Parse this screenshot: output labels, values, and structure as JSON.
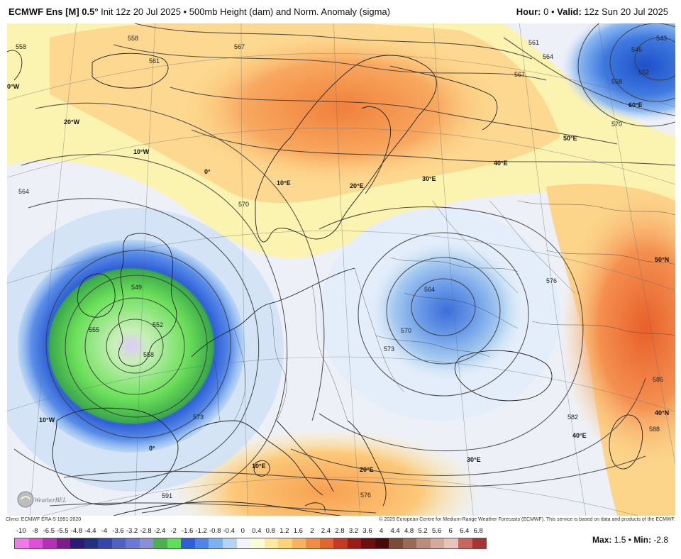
{
  "header": {
    "model": "ECMWF Ens [M] 0.5°",
    "init": "Init 12z 20 Jul 2025",
    "separator": "•",
    "product": "500mb Height (dam) and Norm. Anomaly (sigma)",
    "hour_label": "Hour:",
    "hour_value": "0",
    "valid_label": "Valid:",
    "valid_value": "12z Sun 20 Jul 2025"
  },
  "credits": {
    "climo": "Climo: ECMWF ERA-5 1991-2020",
    "copyright": "© 2025 European Centre for Medium-Range Weather Forecasts (ECMWF). This service is based on data and products of the ECMWF."
  },
  "legend": {
    "labels": [
      "-10",
      "-8",
      "-6.5",
      "-5.5",
      "-4.8",
      "-4.4",
      "-4",
      "-3.6",
      "-3.2",
      "-2.8",
      "-2.4",
      "-2",
      "-1.6",
      "-1.2",
      "-0.8",
      "-0.4",
      "0",
      "0.4",
      "0.8",
      "1.2",
      "1.6",
      "2",
      "2.4",
      "2.8",
      "3.2",
      "3.6",
      "4",
      "4.4",
      "4.8",
      "5.2",
      "5.6",
      "6",
      "6.4",
      "6.8"
    ],
    "colors": [
      "#f07ae8",
      "#e04fd8",
      "#b52fb8",
      "#7a1f8a",
      "#2a1a78",
      "#21307f",
      "#3446a8",
      "#5060c4",
      "#6a7ad4",
      "#8c8ed8",
      "#4caf50",
      "#5ee05a",
      "#2f5fd8",
      "#4f85ea",
      "#7fb0f0",
      "#b5d3f4",
      "#f2f4fa",
      "#fbfbd8",
      "#ffe9a0",
      "#fdd37a",
      "#f7b45e",
      "#f08c45",
      "#e26530",
      "#c43a22",
      "#9b1d18",
      "#6e0e10",
      "#4a0a0c",
      "#7d4a3a",
      "#9a6a58",
      "#b98c7c",
      "#d4a99e",
      "#e8c3bc",
      "#c7665e",
      "#a73333"
    ]
  },
  "stats": {
    "max_label": "Max:",
    "max_value": "1.5",
    "min_label": "Min:",
    "min_value": "-2.8"
  },
  "logo_text": "WeatherBELL",
  "map_labels": {
    "lon_20w": "20°W",
    "lon_10w_top": "10°W",
    "lon_0w_left": "0°W",
    "lon_0_mid": "0°",
    "lon_10e_mid": "10°E",
    "lon_20e_mid": "20°E",
    "lon_30e_mid": "30°E",
    "lon_40e_right": "40°E",
    "lon_50e": "50°E",
    "lat_60e": "60°E",
    "lon_10w_bottom": "10°W",
    "lon_0_bottom": "0°",
    "lon_10e_bottom": "10°E",
    "lon_20e_bottom": "20°E",
    "lon_30e_bottom": "30°E",
    "lon_40e_bottom": "40°E",
    "lat_50n": "50°N",
    "lat_40n": "40°N"
  },
  "contour_labels": {
    "c558_top": "558",
    "c561_top": "561",
    "c567_top": "567",
    "c558_left": "558",
    "c564_left": "564",
    "c570_mid": "570",
    "c549": "549",
    "c555": "555",
    "c552": "552",
    "c558_low": "558",
    "c573": "573",
    "c564_east": "564",
    "c570_east": "570",
    "c573_east": "573",
    "c576_east": "576",
    "c582": "582",
    "c591": "591",
    "c543": "543",
    "c546": "546",
    "c552_ne": "552",
    "c558_ne": "558",
    "c570_ne": "570",
    "c564_ne": "564",
    "c567_ne": "567",
    "c561_ne": "561",
    "c585": "585",
    "c588": "588",
    "c576_south": "576"
  }
}
